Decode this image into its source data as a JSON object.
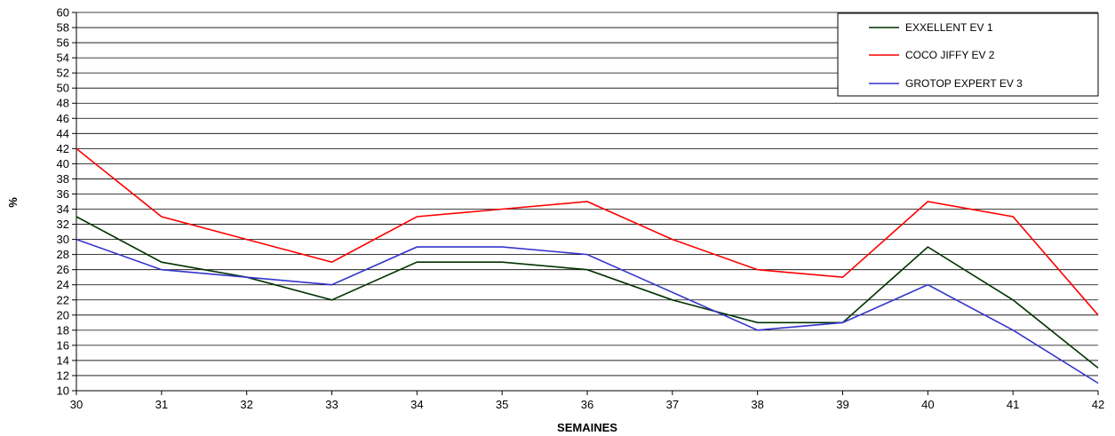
{
  "chart_data": {
    "type": "line",
    "title": "",
    "xlabel": "SEMAINES",
    "ylabel": "%",
    "x": [
      30,
      31,
      32,
      33,
      34,
      35,
      36,
      37,
      38,
      39,
      40,
      41,
      42
    ],
    "ylim": [
      10,
      60
    ],
    "ytick_step": 2,
    "grid": true,
    "legend_position": "top-right",
    "series": [
      {
        "name": "EXXELLENT EV 1",
        "color": "#003300",
        "values": [
          33,
          27,
          25,
          22,
          27,
          27,
          26,
          22,
          19,
          19,
          29,
          22,
          13
        ]
      },
      {
        "name": "COCO JIFFY  EV 2",
        "color": "#ff0000",
        "values": [
          42,
          33,
          30,
          27,
          33,
          34,
          35,
          30,
          26,
          25,
          35,
          33,
          20
        ]
      },
      {
        "name": "GROTOP  EXPERT EV 3",
        "color": "#3333cc",
        "values": [
          30,
          26,
          25,
          24,
          29,
          29,
          28,
          23,
          18,
          19,
          24,
          18,
          11
        ]
      }
    ]
  }
}
